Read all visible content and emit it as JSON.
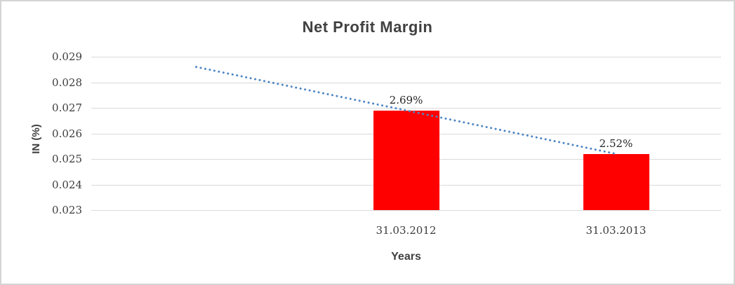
{
  "window": {
    "background_color": "#ffffff",
    "border_color": "#d4d4d4"
  },
  "chart_data": {
    "type": "bar",
    "title": "Net Profit Margin",
    "xlabel": "Years",
    "ylabel": "IN (%)",
    "categories": [
      "31.03.2012",
      "31.03.2013"
    ],
    "values": [
      0.0269,
      0.0252
    ],
    "data_labels": [
      "2.69%",
      "2.52%"
    ],
    "ylim": [
      0.023,
      0.029
    ],
    "yticks": [
      "0.029",
      "0.028",
      "0.027",
      "0.026",
      "0.025",
      "0.024",
      "0.023"
    ],
    "grid": true,
    "legend_position": "none",
    "bar_color": "#ff0000",
    "gridline_color": "#d9d9d9",
    "text_color": "#404040",
    "trendline": {
      "type": "linear",
      "style": "dotted",
      "color": "#4e86c4",
      "start_value": 0.0286,
      "end_value": 0.0252,
      "backward_periods": 1
    }
  }
}
